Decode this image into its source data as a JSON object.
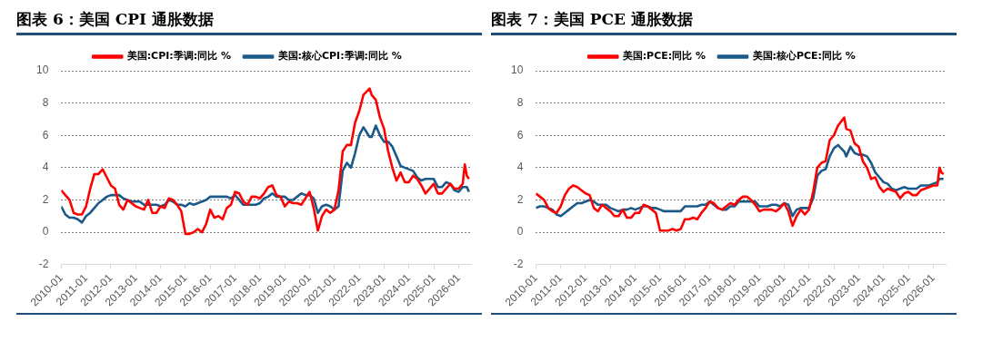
{
  "chart_data": [
    {
      "type": "line",
      "title": "图表 6：美国 CPI 通胀数据",
      "legend": "top",
      "grid": "y",
      "marker": "none",
      "line_style": "solid",
      "xlim": [
        "2010-01",
        "2026-07"
      ],
      "xticks": [
        "2010-01",
        "2011-01",
        "2012-01",
        "2013-01",
        "2014-01",
        "2015-01",
        "2016-01",
        "2017-01",
        "2018-01",
        "2019-01",
        "2020-01",
        "2021-01",
        "2022-01",
        "2023-01",
        "2024-01",
        "2025-01",
        "2026-01"
      ],
      "ylim": [
        -2,
        10
      ],
      "yticks": [
        -2,
        0,
        2,
        4,
        6,
        8,
        10
      ],
      "x": [
        "2010-01",
        "2010-03",
        "2010-05",
        "2010-07",
        "2010-09",
        "2010-11",
        "2011-01",
        "2011-03",
        "2011-05",
        "2011-07",
        "2011-09",
        "2011-11",
        "2012-01",
        "2012-03",
        "2012-05",
        "2012-07",
        "2012-09",
        "2012-11",
        "2013-01",
        "2013-03",
        "2013-05",
        "2013-07",
        "2013-09",
        "2013-11",
        "2014-01",
        "2014-03",
        "2014-05",
        "2014-07",
        "2014-09",
        "2014-11",
        "2015-01",
        "2015-03",
        "2015-05",
        "2015-07",
        "2015-09",
        "2015-11",
        "2016-01",
        "2016-03",
        "2016-05",
        "2016-07",
        "2016-09",
        "2016-11",
        "2017-01",
        "2017-03",
        "2017-05",
        "2017-07",
        "2017-09",
        "2017-11",
        "2018-01",
        "2018-03",
        "2018-05",
        "2018-07",
        "2018-09",
        "2018-11",
        "2019-01",
        "2019-03",
        "2019-05",
        "2019-07",
        "2019-09",
        "2019-11",
        "2020-01",
        "2020-03",
        "2020-05",
        "2020-07",
        "2020-09",
        "2020-11",
        "2021-01",
        "2021-03",
        "2021-05",
        "2021-07",
        "2021-09",
        "2021-11",
        "2022-01",
        "2022-03",
        "2022-06",
        "2022-07",
        "2022-09",
        "2022-11",
        "2023-01",
        "2023-03",
        "2023-05",
        "2023-07",
        "2023-09",
        "2023-11",
        "2024-01",
        "2024-03",
        "2024-05",
        "2024-07",
        "2024-09",
        "2024-11",
        "2025-01",
        "2025-03",
        "2025-05",
        "2025-07",
        "2025-09",
        "2025-11",
        "2026-01",
        "2026-03",
        "2026-04",
        "2026-05",
        "2026-06"
      ],
      "series": [
        {
          "name": "美国:CPI:季调:同比 %",
          "color": "#ff0000",
          "values": [
            2.6,
            2.3,
            2.0,
            1.2,
            1.1,
            1.1,
            1.6,
            2.7,
            3.6,
            3.6,
            3.9,
            3.4,
            2.9,
            2.7,
            1.7,
            1.4,
            2.0,
            1.8,
            1.6,
            1.5,
            1.4,
            2.0,
            1.2,
            1.2,
            1.6,
            1.5,
            2.1,
            2.0,
            1.7,
            1.3,
            -0.1,
            -0.1,
            0.0,
            0.2,
            0.0,
            0.5,
            1.4,
            0.9,
            1.0,
            0.8,
            1.5,
            1.7,
            2.5,
            2.4,
            1.9,
            1.7,
            2.2,
            2.2,
            2.1,
            2.4,
            2.8,
            2.9,
            2.3,
            2.2,
            1.6,
            1.9,
            1.8,
            1.8,
            1.7,
            2.1,
            2.5,
            1.5,
            0.1,
            1.0,
            1.4,
            1.2,
            1.4,
            2.6,
            5.0,
            5.4,
            5.4,
            6.8,
            7.5,
            8.5,
            8.9,
            8.5,
            8.2,
            7.1,
            6.4,
            5.0,
            4.0,
            3.2,
            3.7,
            3.1,
            3.1,
            3.5,
            3.3,
            2.9,
            2.4,
            2.7,
            3.0,
            2.4,
            2.4,
            2.7,
            3.0,
            2.7,
            2.7,
            3.0,
            4.2,
            3.5,
            3.3
          ]
        },
        {
          "name": "美国:核心CPI:季调:同比 %",
          "color": "#1a5a8a",
          "values": [
            1.6,
            1.1,
            0.9,
            0.9,
            0.8,
            0.6,
            1.0,
            1.2,
            1.5,
            1.8,
            2.0,
            2.2,
            2.3,
            2.3,
            2.3,
            2.1,
            2.0,
            1.9,
            1.9,
            1.9,
            1.7,
            1.7,
            1.7,
            1.7,
            1.6,
            1.7,
            2.0,
            1.9,
            1.7,
            1.7,
            1.6,
            1.8,
            1.7,
            1.8,
            1.9,
            2.0,
            2.2,
            2.2,
            2.2,
            2.2,
            2.2,
            2.1,
            2.3,
            2.0,
            1.7,
            1.7,
            1.7,
            1.7,
            1.8,
            2.1,
            2.2,
            2.4,
            2.2,
            2.2,
            2.2,
            2.0,
            2.0,
            2.2,
            2.4,
            2.3,
            2.3,
            2.1,
            1.2,
            1.6,
            1.7,
            1.6,
            1.4,
            1.6,
            3.8,
            4.3,
            4.0,
            4.9,
            6.0,
            6.5,
            5.9,
            5.9,
            6.6,
            6.0,
            5.6,
            5.6,
            5.3,
            4.7,
            4.1,
            4.0,
            3.9,
            3.8,
            3.4,
            3.2,
            3.3,
            3.3,
            3.3,
            2.8,
            2.8,
            3.1,
            3.0,
            2.6,
            2.5,
            2.8,
            2.8,
            2.8,
            2.5
          ]
        }
      ]
    },
    {
      "type": "line",
      "title": "图表 7：美国 PCE 通胀数据",
      "legend": "top",
      "grid": "y",
      "marker": "none",
      "line_style": "solid",
      "xlim": [
        "2010-01",
        "2026-07"
      ],
      "xticks": [
        "2010-01",
        "2011-01",
        "2012-01",
        "2013-01",
        "2014-01",
        "2015-01",
        "2016-01",
        "2017-01",
        "2018-01",
        "2019-01",
        "2020-01",
        "2021-01",
        "2022-01",
        "2023-01",
        "2024-01",
        "2025-01",
        "2026-01"
      ],
      "ylim": [
        -2,
        10
      ],
      "yticks": [
        -2,
        0,
        2,
        4,
        6,
        8,
        10
      ],
      "x": [
        "2010-01",
        "2010-03",
        "2010-05",
        "2010-07",
        "2010-09",
        "2010-11",
        "2011-01",
        "2011-03",
        "2011-05",
        "2011-07",
        "2011-09",
        "2011-11",
        "2012-01",
        "2012-03",
        "2012-05",
        "2012-07",
        "2012-09",
        "2012-11",
        "2013-01",
        "2013-03",
        "2013-05",
        "2013-07",
        "2013-09",
        "2013-11",
        "2014-01",
        "2014-03",
        "2014-05",
        "2014-07",
        "2014-09",
        "2014-11",
        "2015-01",
        "2015-03",
        "2015-05",
        "2015-07",
        "2015-09",
        "2015-11",
        "2016-01",
        "2016-03",
        "2016-05",
        "2016-07",
        "2016-09",
        "2016-11",
        "2017-01",
        "2017-03",
        "2017-05",
        "2017-07",
        "2017-09",
        "2017-11",
        "2018-01",
        "2018-03",
        "2018-05",
        "2018-07",
        "2018-09",
        "2018-11",
        "2019-01",
        "2019-03",
        "2019-05",
        "2019-07",
        "2019-09",
        "2019-11",
        "2020-01",
        "2020-03",
        "2020-05",
        "2020-07",
        "2020-09",
        "2020-11",
        "2021-01",
        "2021-03",
        "2021-05",
        "2021-07",
        "2021-09",
        "2021-11",
        "2022-01",
        "2022-03",
        "2022-06",
        "2022-07",
        "2022-09",
        "2022-11",
        "2023-01",
        "2023-03",
        "2023-05",
        "2023-07",
        "2023-09",
        "2023-11",
        "2024-01",
        "2024-03",
        "2024-05",
        "2024-07",
        "2024-09",
        "2024-11",
        "2025-01",
        "2025-03",
        "2025-05",
        "2025-07",
        "2025-09",
        "2025-11",
        "2026-01",
        "2026-03",
        "2026-04",
        "2026-05",
        "2026-06"
      ],
      "series": [
        {
          "name": "美国:PCE:同比 %",
          "color": "#ff0000",
          "values": [
            2.4,
            2.2,
            2.0,
            1.5,
            1.3,
            1.2,
            1.6,
            2.3,
            2.7,
            2.9,
            2.8,
            2.6,
            2.4,
            2.3,
            1.5,
            1.3,
            1.7,
            1.5,
            1.3,
            1.0,
            1.0,
            1.4,
            0.9,
            0.9,
            1.2,
            1.2,
            1.7,
            1.6,
            1.4,
            1.2,
            0.1,
            0.1,
            0.1,
            0.2,
            0.1,
            0.2,
            0.8,
            0.8,
            0.9,
            0.8,
            1.2,
            1.5,
            1.9,
            1.8,
            1.5,
            1.4,
            1.6,
            1.8,
            1.7,
            2.0,
            2.2,
            2.2,
            2.0,
            1.7,
            1.3,
            1.4,
            1.4,
            1.4,
            1.3,
            1.5,
            1.8,
            1.3,
            0.4,
            1.0,
            1.4,
            1.1,
            1.4,
            2.5,
            4.0,
            4.3,
            4.4,
            5.7,
            6.0,
            6.6,
            7.1,
            6.4,
            6.3,
            5.5,
            5.3,
            4.4,
            4.0,
            3.3,
            3.4,
            2.8,
            2.5,
            2.7,
            2.6,
            2.5,
            2.1,
            2.4,
            2.5,
            2.3,
            2.3,
            2.6,
            2.7,
            2.8,
            2.9,
            2.9,
            4.0,
            3.7,
            3.6
          ]
        },
        {
          "name": "美国:核心PCE:同比 %",
          "color": "#1a5a8a",
          "values": [
            1.5,
            1.6,
            1.6,
            1.5,
            1.4,
            1.1,
            1.0,
            1.2,
            1.4,
            1.6,
            1.8,
            1.8,
            1.9,
            2.0,
            1.9,
            1.7,
            1.7,
            1.7,
            1.5,
            1.4,
            1.3,
            1.4,
            1.4,
            1.5,
            1.4,
            1.5,
            1.6,
            1.6,
            1.5,
            1.5,
            1.4,
            1.3,
            1.3,
            1.3,
            1.3,
            1.3,
            1.6,
            1.6,
            1.6,
            1.6,
            1.7,
            1.7,
            1.9,
            1.7,
            1.5,
            1.4,
            1.4,
            1.6,
            1.6,
            1.9,
            1.9,
            1.9,
            1.9,
            1.9,
            1.6,
            1.6,
            1.6,
            1.7,
            1.7,
            1.6,
            1.8,
            1.7,
            1.0,
            1.4,
            1.5,
            1.5,
            1.5,
            2.1,
            3.5,
            3.8,
            3.9,
            4.7,
            5.2,
            5.4,
            5.0,
            4.7,
            5.3,
            4.9,
            4.8,
            4.8,
            4.7,
            4.3,
            3.7,
            3.4,
            3.1,
            3.0,
            2.7,
            2.6,
            2.7,
            2.8,
            2.7,
            2.7,
            2.7,
            2.9,
            2.9,
            2.9,
            3.0,
            3.1,
            3.3,
            3.3,
            3.3
          ]
        }
      ]
    }
  ]
}
